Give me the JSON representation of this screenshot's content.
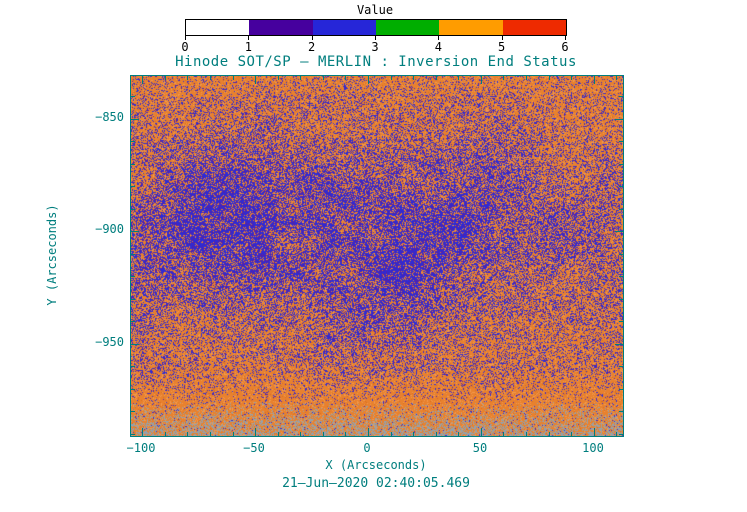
{
  "colors": {
    "axis_text": "#007E7E",
    "colorbar_text": "#000000",
    "background": "#FFFFFF"
  },
  "chart_data": {
    "type": "heatmap",
    "title": "Hinode SOT/SP — MERLIN : Inversion End Status",
    "xlabel": "X (Arcseconds)",
    "ylabel": "Y (Arcseconds)",
    "caption": "21—Jun—2020 02:40:05.469",
    "xlim": [
      -105,
      113
    ],
    "ylim": [
      -991,
      -831
    ],
    "x_ticks": [
      -100,
      -50,
      0,
      50,
      100
    ],
    "y_ticks": [
      -850,
      -900,
      -950
    ],
    "grid": false,
    "colorbar": {
      "label": "Value",
      "ticks": [
        0,
        1,
        2,
        3,
        4,
        5,
        6
      ],
      "colors": [
        "#FFFFFF",
        "#46009E",
        "#2626D8",
        "#00AE00",
        "#FF9C00",
        "#EE2A00"
      ],
      "position": "top"
    },
    "description": "Speckled inversion end-status map: dominated by value 5 (orange) with a broad central patchy region of values 1-2 (purple/blue); gray saturated speckle band along the bottom edge.",
    "pixel_palette": {
      "orange": "#E8812E",
      "orange_light": "#F09A50",
      "orange_dark": "#D96F1F",
      "blue": "#2C2CD8",
      "purple": "#5520A8",
      "gray": "#93A1AD"
    },
    "noise_model": {
      "seed": 20200621,
      "blue_fraction_center": 0.85,
      "blue_fraction_edges": 0.2,
      "purple_share_of_blue": 0.34,
      "gray_band_start_frac": 0.9
    }
  }
}
